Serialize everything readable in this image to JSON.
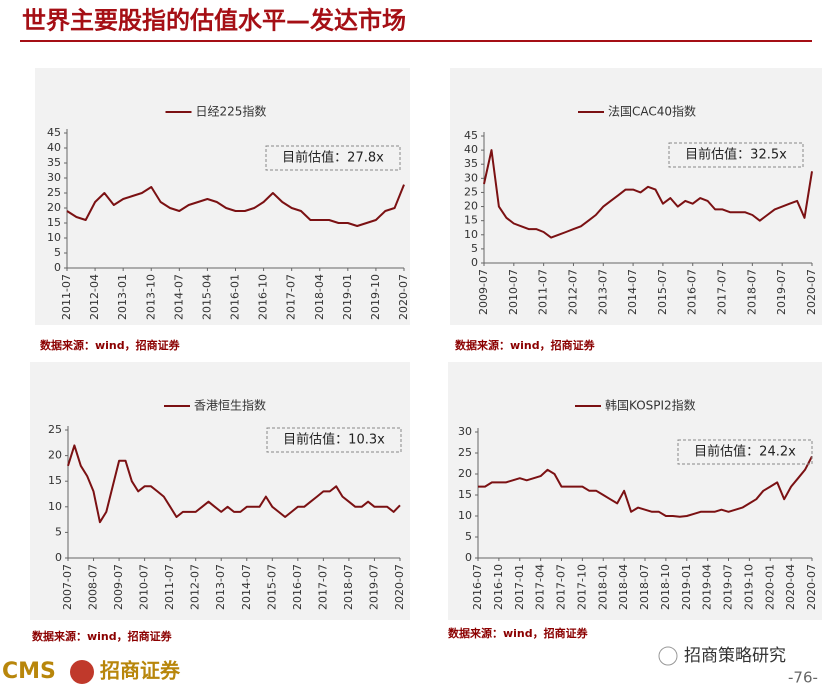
{
  "title": "世界主要股指的估值水平—发达市场",
  "sources": [
    "数据来源：wind，招商证券",
    "数据来源：wind，招商证券",
    "数据来源：wind，招商证券",
    "数据来源：wind，招商证券"
  ],
  "footer": {
    "logo": "CMS",
    "logo_cn": "招商证券",
    "wechat": "招商策略研究",
    "page_number": "-76-"
  },
  "chart_data": [
    {
      "type": "line",
      "annotation": "目前估值：27.8x",
      "x": [
        "2011-07",
        "2011-10",
        "2012-01",
        "2012-04",
        "2012-07",
        "2012-10",
        "2013-01",
        "2013-04",
        "2013-07",
        "2013-10",
        "2014-01",
        "2014-04",
        "2014-07",
        "2014-10",
        "2015-01",
        "2015-04",
        "2015-07",
        "2015-10",
        "2016-01",
        "2016-04",
        "2016-07",
        "2016-10",
        "2017-01",
        "2017-04",
        "2017-07",
        "2017-10",
        "2018-01",
        "2018-04",
        "2018-07",
        "2018-10",
        "2019-01",
        "2019-04",
        "2019-07",
        "2019-10",
        "2020-01",
        "2020-04",
        "2020-07"
      ],
      "series": [
        {
          "name": "日经225指数",
          "color": "#7b1113",
          "values": [
            19,
            17,
            16,
            22,
            25,
            21,
            23,
            24,
            25,
            27,
            22,
            20,
            19,
            21,
            22,
            23,
            22,
            20,
            19,
            19,
            20,
            22,
            25,
            22,
            20,
            19,
            16,
            16,
            16,
            15,
            15,
            14,
            15,
            16,
            19,
            20,
            27.8
          ]
        }
      ],
      "xticks": [
        "2011-07",
        "2012-04",
        "2013-01",
        "2013-10",
        "2014-07",
        "2015-04",
        "2016-01",
        "2016-10",
        "2017-07",
        "2018-04",
        "2019-01",
        "2019-10",
        "2020-07"
      ],
      "ylim": [
        0,
        45
      ],
      "yticks": [
        0,
        5,
        10,
        15,
        20,
        25,
        30,
        35,
        40,
        45
      ]
    },
    {
      "type": "line",
      "annotation": "目前估值：32.5x",
      "x": [
        "2009-07",
        "2009-10",
        "2010-01",
        "2010-04",
        "2010-07",
        "2010-10",
        "2011-01",
        "2011-04",
        "2011-07",
        "2011-10",
        "2012-01",
        "2012-04",
        "2012-07",
        "2012-10",
        "2013-01",
        "2013-04",
        "2013-07",
        "2013-10",
        "2014-01",
        "2014-04",
        "2014-07",
        "2014-10",
        "2015-01",
        "2015-04",
        "2015-07",
        "2015-10",
        "2016-01",
        "2016-04",
        "2016-07",
        "2016-10",
        "2017-01",
        "2017-04",
        "2017-07",
        "2017-10",
        "2018-01",
        "2018-04",
        "2018-07",
        "2018-10",
        "2019-01",
        "2019-04",
        "2019-07",
        "2019-10",
        "2020-01",
        "2020-04",
        "2020-07"
      ],
      "series": [
        {
          "name": "法国CAC40指数",
          "color": "#7b1113",
          "values": [
            28,
            40,
            20,
            16,
            14,
            13,
            12,
            12,
            11,
            9,
            10,
            11,
            12,
            13,
            15,
            17,
            20,
            22,
            24,
            26,
            26,
            25,
            27,
            26,
            21,
            23,
            20,
            22,
            21,
            23,
            22,
            19,
            19,
            18,
            18,
            18,
            17,
            15,
            17,
            19,
            20,
            21,
            22,
            16,
            32.5
          ]
        }
      ],
      "xticks": [
        "2009-07",
        "2010-07",
        "2011-07",
        "2012-07",
        "2013-07",
        "2014-07",
        "2015-07",
        "2016-07",
        "2017-07",
        "2018-07",
        "2019-07",
        "2020-07"
      ],
      "ylim": [
        0,
        45
      ],
      "yticks": [
        0,
        5,
        10,
        15,
        20,
        25,
        30,
        35,
        40,
        45
      ]
    },
    {
      "type": "line",
      "annotation": "目前估值：10.3x",
      "x": [
        "2007-07",
        "2007-10",
        "2008-01",
        "2008-04",
        "2008-07",
        "2008-10",
        "2009-01",
        "2009-04",
        "2009-07",
        "2009-10",
        "2010-01",
        "2010-04",
        "2010-07",
        "2010-10",
        "2011-01",
        "2011-04",
        "2011-07",
        "2011-10",
        "2012-01",
        "2012-04",
        "2012-07",
        "2012-10",
        "2013-01",
        "2013-04",
        "2013-07",
        "2013-10",
        "2014-01",
        "2014-04",
        "2014-07",
        "2014-10",
        "2015-01",
        "2015-04",
        "2015-07",
        "2015-10",
        "2016-01",
        "2016-04",
        "2016-07",
        "2016-10",
        "2017-01",
        "2017-04",
        "2017-07",
        "2017-10",
        "2018-01",
        "2018-04",
        "2018-07",
        "2018-10",
        "2019-01",
        "2019-04",
        "2019-07",
        "2019-10",
        "2020-01",
        "2020-04",
        "2020-07"
      ],
      "series": [
        {
          "name": "香港恒生指数",
          "color": "#7b1113",
          "values": [
            18,
            22,
            18,
            16,
            13,
            7,
            9,
            14,
            19,
            19,
            15,
            13,
            14,
            14,
            13,
            12,
            10,
            8,
            9,
            9,
            9,
            10,
            11,
            10,
            9,
            10,
            9,
            9,
            10,
            10,
            10,
            12,
            10,
            9,
            8,
            9,
            10,
            10,
            11,
            12,
            13,
            13,
            14,
            12,
            11,
            10,
            10,
            11,
            10,
            10,
            10,
            9,
            10.3
          ]
        }
      ],
      "xticks": [
        "2007-07",
        "2008-07",
        "2009-07",
        "2010-07",
        "2011-07",
        "2012-07",
        "2013-07",
        "2014-07",
        "2015-07",
        "2016-07",
        "2017-07",
        "2018-07",
        "2019-07",
        "2020-07"
      ],
      "ylim": [
        0,
        25
      ],
      "yticks": [
        0,
        5,
        10,
        15,
        20,
        25
      ]
    },
    {
      "type": "line",
      "annotation": "目前估值：24.2x",
      "x": [
        "2016-07",
        "2016-08",
        "2016-09",
        "2016-10",
        "2016-11",
        "2016-12",
        "2017-01",
        "2017-02",
        "2017-03",
        "2017-04",
        "2017-05",
        "2017-06",
        "2017-07",
        "2017-08",
        "2017-09",
        "2017-10",
        "2017-11",
        "2017-12",
        "2018-01",
        "2018-02",
        "2018-03",
        "2018-04",
        "2018-05",
        "2018-06",
        "2018-07",
        "2018-08",
        "2018-09",
        "2018-10",
        "2018-11",
        "2018-12",
        "2019-01",
        "2019-02",
        "2019-03",
        "2019-04",
        "2019-05",
        "2019-06",
        "2019-07",
        "2019-08",
        "2019-09",
        "2019-10",
        "2019-11",
        "2019-12",
        "2020-01",
        "2020-02",
        "2020-03",
        "2020-04",
        "2020-05",
        "2020-06",
        "2020-07"
      ],
      "series": [
        {
          "name": "韩国KOSPI2指数",
          "color": "#7b1113",
          "values": [
            17,
            17,
            18,
            18,
            18,
            18.5,
            19,
            18.5,
            19,
            19.5,
            21,
            20,
            17,
            17,
            17,
            17,
            16,
            16,
            15,
            14,
            13,
            16,
            11,
            12,
            11.5,
            11,
            11,
            10,
            10,
            9.8,
            10,
            10.5,
            11,
            11,
            11,
            11.5,
            11,
            11.5,
            12,
            13,
            14,
            16,
            17,
            18,
            14,
            17,
            19,
            21,
            24.2
          ]
        }
      ],
      "xticks": [
        "2016-07",
        "2016-10",
        "2017-01",
        "2017-04",
        "2017-07",
        "2017-10",
        "2018-01",
        "2018-04",
        "2018-07",
        "2018-10",
        "2019-01",
        "2019-04",
        "2019-07",
        "2019-10",
        "2020-01",
        "2020-04",
        "2020-07"
      ],
      "ylim": [
        0,
        30
      ],
      "yticks": [
        0,
        5,
        10,
        15,
        20,
        25,
        30
      ]
    }
  ]
}
